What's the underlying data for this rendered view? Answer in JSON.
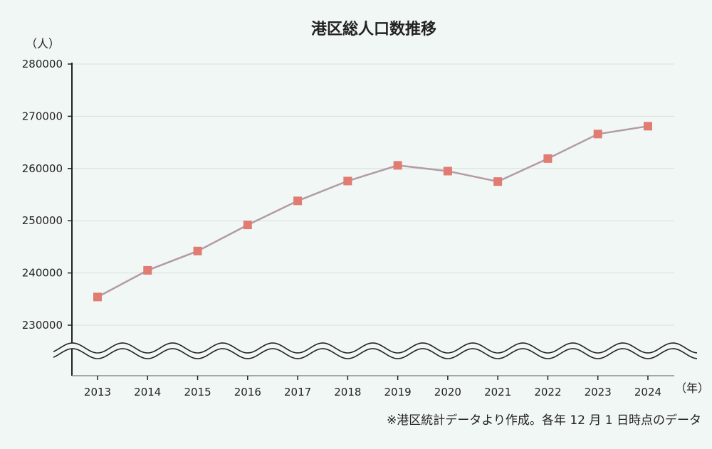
{
  "chart_data": {
    "type": "line",
    "title": "港区総人口数推移",
    "ylabel": "（人）",
    "xlabel": "（年）",
    "note": "※港区統計データより作成。各年 12 月 1 日時点のデータ",
    "x": [
      "2013",
      "2014",
      "2015",
      "2016",
      "2017",
      "2018",
      "2019",
      "2020",
      "2021",
      "2022",
      "2023",
      "2024"
    ],
    "series": [
      {
        "values": [
          235400,
          240500,
          244200,
          249200,
          253800,
          257600,
          260600,
          259500,
          257500,
          261900,
          266600,
          268100
        ]
      }
    ],
    "yticks": [
      230000,
      240000,
      250000,
      260000,
      270000,
      280000
    ],
    "ylim": [
      230000,
      280000
    ],
    "axis_break": true,
    "grid": true,
    "line_color": "#b39ba3",
    "marker_color": "#e07c72"
  }
}
